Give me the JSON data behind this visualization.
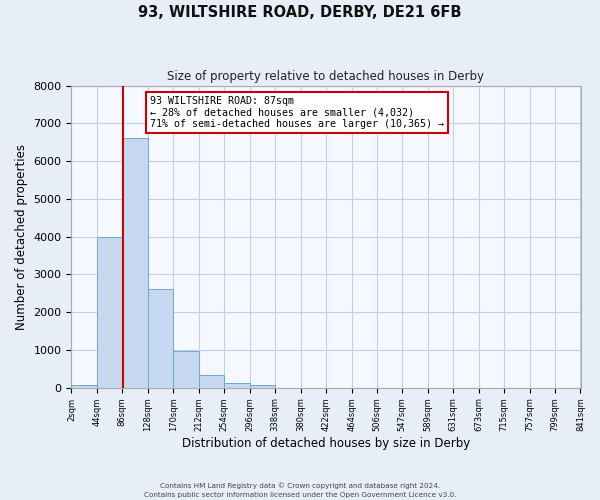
{
  "title": "93, WILTSHIRE ROAD, DERBY, DE21 6FB",
  "subtitle": "Size of property relative to detached houses in Derby",
  "xlabel": "Distribution of detached houses by size in Derby",
  "ylabel": "Number of detached properties",
  "bar_edges": [
    2,
    44,
    86,
    128,
    170,
    212,
    254,
    296,
    338,
    380,
    422,
    464,
    506,
    547,
    589,
    631,
    673,
    715,
    757,
    799,
    841
  ],
  "bar_heights": [
    70,
    4000,
    6620,
    2620,
    960,
    330,
    120,
    70,
    0,
    0,
    0,
    0,
    0,
    0,
    0,
    0,
    0,
    0,
    0,
    0
  ],
  "bar_color": "#c5d8f0",
  "bar_edgecolor": "#6aaad4",
  "property_size": 87,
  "property_line_color": "#cc0000",
  "annotation_box_edgecolor": "#cc0000",
  "annotation_text_line1": "93 WILTSHIRE ROAD: 87sqm",
  "annotation_text_line2": "← 28% of detached houses are smaller (4,032)",
  "annotation_text_line3": "71% of semi-detached houses are larger (10,365) →",
  "ylim": [
    0,
    8000
  ],
  "yticks": [
    0,
    1000,
    2000,
    3000,
    4000,
    5000,
    6000,
    7000,
    8000
  ],
  "tick_labels": [
    "2sqm",
    "44sqm",
    "86sqm",
    "128sqm",
    "170sqm",
    "212sqm",
    "254sqm",
    "296sqm",
    "338sqm",
    "380sqm",
    "422sqm",
    "464sqm",
    "506sqm",
    "547sqm",
    "589sqm",
    "631sqm",
    "673sqm",
    "715sqm",
    "757sqm",
    "799sqm",
    "841sqm"
  ],
  "footer_line1": "Contains HM Land Registry data © Crown copyright and database right 2024.",
  "footer_line2": "Contains public sector information licensed under the Open Government Licence v3.0.",
  "bg_color": "#e8eef8",
  "plot_bg_color": "#f5f8ff",
  "grid_color": "#c5d0e8"
}
